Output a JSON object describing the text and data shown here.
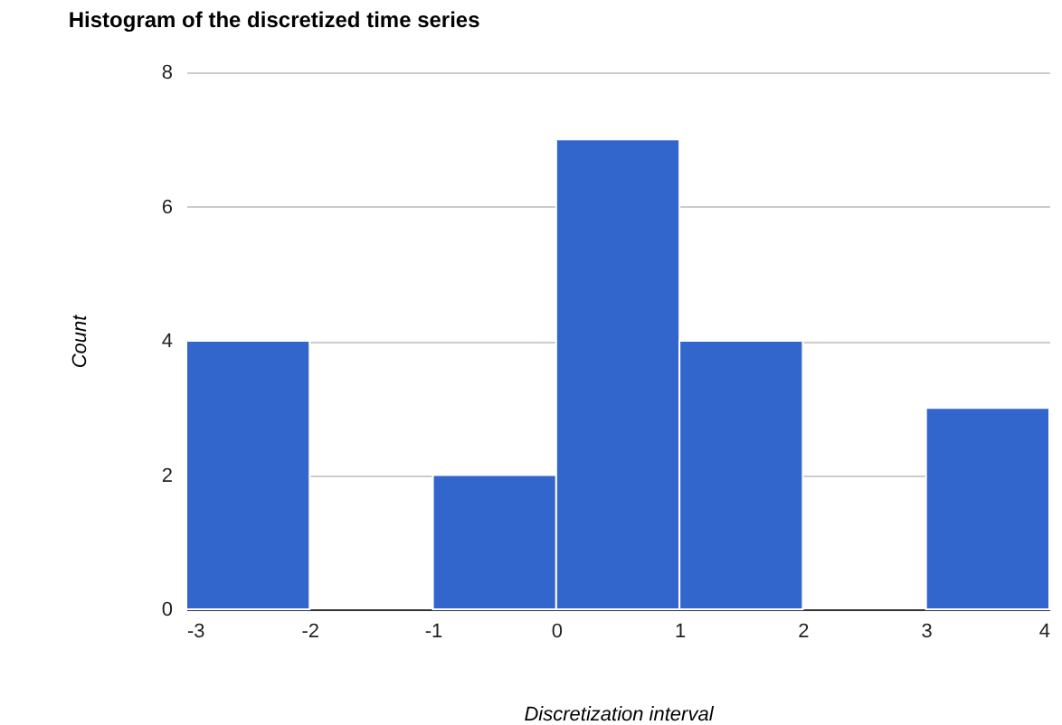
{
  "chart_data": {
    "type": "histogram",
    "title": "Histogram of the discretized time series",
    "xlabel": "Discretization interval",
    "ylabel": "Count",
    "bins": [
      -3,
      -2,
      -1,
      0,
      1,
      2,
      3,
      4
    ],
    "values": [
      4,
      0,
      2,
      7,
      4,
      0,
      3
    ],
    "color": "#3366cc",
    "xlim": [
      -3,
      4
    ],
    "xticks": [
      -3,
      -2,
      -1,
      0,
      1,
      2,
      3,
      4
    ],
    "ylim": [
      0,
      8
    ],
    "yticks": [
      0,
      2,
      4,
      6,
      8
    ],
    "grid": "y"
  }
}
